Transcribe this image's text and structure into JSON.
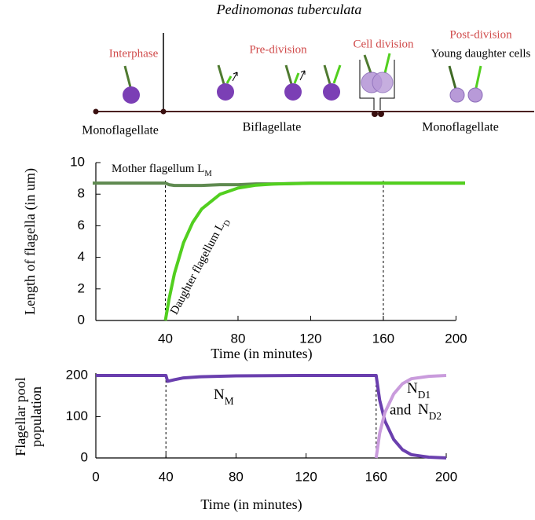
{
  "title": "Pedinomonas tuberculata",
  "schematic": {
    "stages": [
      "Interphase",
      "Pre-division",
      "Cell division",
      "Post-division"
    ],
    "note": "Young daughter cells",
    "phases": [
      "Monoflagellate",
      "Biflagellate",
      "Monoflagellate"
    ]
  },
  "chart_data": [
    {
      "type": "line",
      "xlabel": "Time (in minutes)",
      "ylabel": "Length of flagella (in um)",
      "x": [
        0,
        20,
        40,
        42,
        45,
        50,
        55,
        60,
        70,
        80,
        90,
        100,
        120,
        140,
        160,
        180,
        205
      ],
      "series": [
        {
          "name": "Mother flagellum L",
          "subscript": "M",
          "color": "#5f8a50",
          "values": [
            8.7,
            8.7,
            8.7,
            8.6,
            8.55,
            8.55,
            8.55,
            8.55,
            8.6,
            8.6,
            8.65,
            8.65,
            8.7,
            8.7,
            8.7,
            8.7,
            8.7
          ]
        },
        {
          "name": "Daughter flagellum L",
          "subscript": "D",
          "color": "#52cf1f",
          "values": [
            null,
            null,
            0,
            1.33,
            2.97,
            4.92,
            6.2,
            7.06,
            7.99,
            8.39,
            8.57,
            8.64,
            8.69,
            8.7,
            8.7,
            8.7,
            8.7
          ]
        }
      ],
      "xlim": [
        0,
        205
      ],
      "ylim": [
        0,
        10
      ],
      "xticks": [
        40,
        80,
        120,
        160,
        200
      ],
      "yticks": [
        0,
        2,
        4,
        6,
        8,
        10
      ],
      "vlines": [
        40,
        160
      ],
      "grid": false
    },
    {
      "type": "line",
      "xlabel": "Time (in minutes)",
      "ylabel": [
        "Flagellar pool",
        "population"
      ],
      "x": [
        0,
        40,
        41,
        45,
        50,
        60,
        80,
        120,
        160,
        162,
        165,
        170,
        175,
        180,
        190,
        200
      ],
      "series": [
        {
          "name": "N",
          "subscript": "M",
          "color": "#6a3fae",
          "values": [
            200,
            200,
            186,
            190,
            194,
            197,
            199,
            200,
            200,
            140,
            90,
            45,
            20,
            8,
            2,
            0
          ]
        },
        {
          "name": "N",
          "subscript": "D1",
          "joiner": "and",
          "name2": "N",
          "subscript2": "D2",
          "color": "#c99bdc",
          "values": [
            null,
            null,
            null,
            null,
            null,
            null,
            null,
            null,
            0,
            60,
            110,
            155,
            180,
            192,
            198,
            200
          ]
        }
      ],
      "xlim": [
        0,
        200
      ],
      "ylim": [
        0,
        200
      ],
      "xticks": [
        0,
        40,
        80,
        120,
        160,
        200
      ],
      "yticks": [
        0,
        100,
        200
      ],
      "vlines": [
        40,
        160
      ],
      "grid": false
    }
  ]
}
